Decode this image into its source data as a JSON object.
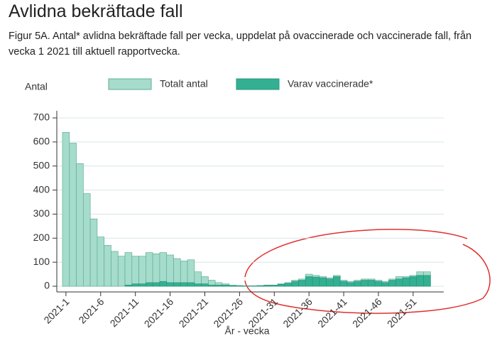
{
  "chart_data": {
    "type": "bar",
    "title": "Avlidna bekräftade fall",
    "subtitle": "Figur 5A. Antal* avlidna bekräftade fall per vecka, uppdelat på ovaccinerade och vaccinerade fall, från vecka 1 2021 till aktuell rapportvecka.",
    "y_label": "Antal",
    "x_label": "År - vecka",
    "categories": [
      "2021-1",
      null,
      null,
      null,
      null,
      "2021-6",
      null,
      null,
      null,
      null,
      "2021-11",
      null,
      null,
      null,
      null,
      "2021-16",
      null,
      null,
      null,
      null,
      "2021-21",
      null,
      null,
      null,
      null,
      "2021-26",
      null,
      null,
      null,
      null,
      "2021-31",
      null,
      null,
      null,
      null,
      "2021-36",
      null,
      null,
      null,
      null,
      "2021-41",
      null,
      null,
      null,
      null,
      "2021-46",
      null,
      null,
      null,
      null,
      "2021-51",
      null,
      null
    ],
    "series": [
      {
        "name": "Totalt antal",
        "color": "#a6dccb",
        "stroke": "#5fae98",
        "values": [
          640,
          595,
          510,
          385,
          280,
          205,
          170,
          145,
          125,
          140,
          125,
          125,
          140,
          135,
          140,
          130,
          115,
          105,
          110,
          60,
          40,
          25,
          15,
          10,
          5,
          3,
          2,
          2,
          3,
          5,
          5,
          10,
          15,
          25,
          30,
          50,
          45,
          40,
          35,
          45,
          25,
          20,
          25,
          30,
          30,
          25,
          20,
          30,
          40,
          40,
          45,
          60,
          60
        ]
      },
      {
        "name": "Varav vaccinerade*",
        "color": "#33b092",
        "stroke": "#2a957b",
        "values": [
          0,
          0,
          0,
          0,
          0,
          0,
          0,
          0,
          0,
          5,
          10,
          10,
          15,
          15,
          20,
          15,
          15,
          15,
          15,
          10,
          10,
          5,
          5,
          5,
          2,
          2,
          1,
          1,
          2,
          4,
          4,
          8,
          12,
          20,
          25,
          40,
          38,
          35,
          30,
          40,
          20,
          15,
          20,
          25,
          25,
          20,
          15,
          25,
          30,
          35,
          40,
          45,
          45
        ]
      }
    ],
    "ylim": [
      0,
      700
    ],
    "yticks": [
      0,
      100,
      200,
      300,
      400,
      500,
      600,
      700
    ],
    "grid": true
  }
}
